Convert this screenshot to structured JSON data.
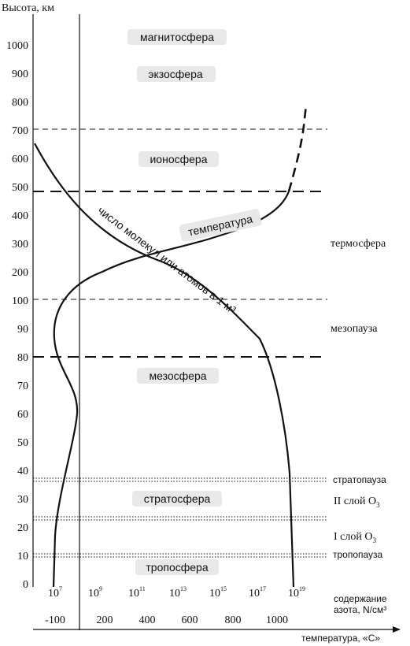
{
  "chart_data": {
    "type": "line",
    "ylabel": "Высота, км",
    "y_ticks": [
      "0",
      "10",
      "20",
      "30",
      "40",
      "50",
      "60",
      "70",
      "80",
      "90",
      "100",
      "200",
      "300",
      "400",
      "500",
      "600",
      "700",
      "800",
      "900",
      "1000"
    ],
    "x_axis_1": {
      "label_line1": "содержание",
      "label_line2": "азота, N/см³",
      "ticks": [
        {
          "base": "10",
          "exp": "7"
        },
        {
          "base": "10",
          "exp": "9"
        },
        {
          "base": "10",
          "exp": "11"
        },
        {
          "base": "10",
          "exp": "13"
        },
        {
          "base": "10",
          "exp": "15"
        },
        {
          "base": "10",
          "exp": "17"
        },
        {
          "base": "10",
          "exp": "19"
        }
      ]
    },
    "x_axis_2": {
      "label": "температура, «С»",
      "ticks": [
        "-100",
        "200",
        "400",
        "600",
        "800",
        "1000"
      ]
    },
    "layers": [
      {
        "key": "magnetosphere",
        "label": "магнитосфера"
      },
      {
        "key": "exosphere",
        "label": "экзосфера"
      },
      {
        "key": "ionosphere",
        "label": "ионосфера"
      },
      {
        "key": "mesosphere",
        "label": "мезосфера"
      },
      {
        "key": "stratosphere",
        "label": "стратосфера"
      },
      {
        "key": "troposphere",
        "label": "тропосфера"
      }
    ],
    "side_labels": {
      "thermosphere": "термосфера",
      "mesopause": "мезопауза",
      "stratopause": "стратопауза",
      "ozone2": "II слой O",
      "ozone2_sub": "3",
      "ozone1": "I слой O",
      "ozone1_sub": "3",
      "tropopause": "тропопауза"
    },
    "curve_labels": {
      "temperature": "температура",
      "molecules": "число молекул или атомов в 1 м³"
    },
    "series": [
      {
        "key": "temperature",
        "style": "solid+dashed"
      },
      {
        "key": "molecules",
        "style": "solid"
      }
    ],
    "boundaries_km": {
      "dashed": [
        700,
        480,
        100,
        80
      ],
      "dotted": [
        36,
        24,
        11
      ]
    }
  }
}
